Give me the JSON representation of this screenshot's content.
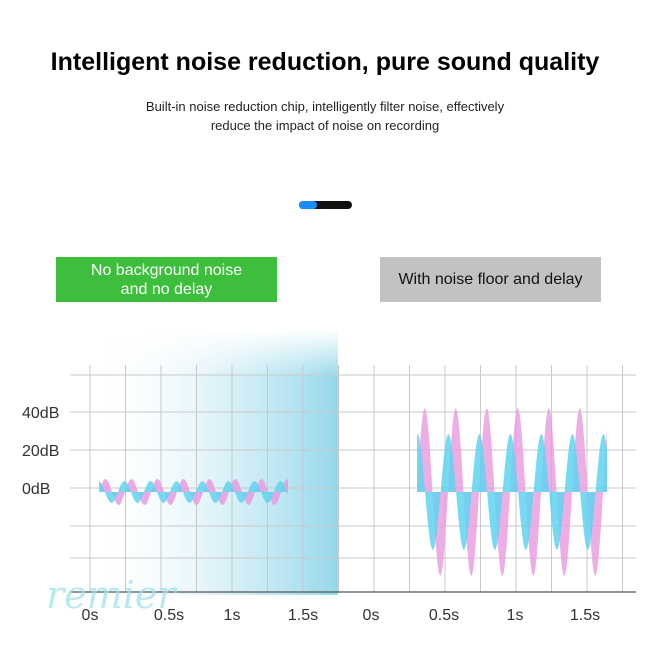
{
  "headline": "Intelligent noise reduction, pure sound quality",
  "subtitle_line1": "Built-in noise reduction chip, intelligently filter noise, effectively",
  "subtitle_line2": "reduce the impact of noise on recording",
  "carousel": {
    "active_index": 0,
    "count": 3
  },
  "left_label": {
    "line1": "No background noise",
    "line2": "and no delay"
  },
  "right_label": "With noise floor and delay",
  "y_ticks": [
    "40dB",
    "20dB",
    "0dB"
  ],
  "x_ticks_left": [
    "0s",
    "0.5s",
    "1s",
    "1.5s"
  ],
  "x_ticks_right": [
    "0s",
    "0.5s",
    "1s",
    "1.5s"
  ],
  "watermark": "remier",
  "colors": {
    "accent": "#1a8cff",
    "green": "#3dbf3d",
    "gray": "#c2c2c2",
    "pink": "#e99ae0",
    "cyan": "#5fd3ee"
  }
}
